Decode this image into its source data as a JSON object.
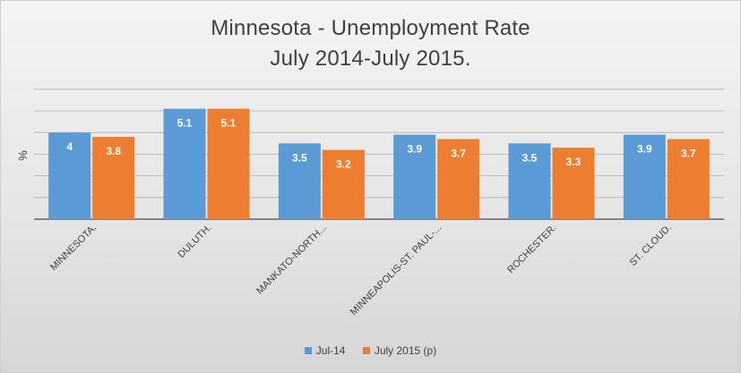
{
  "chart_data": {
    "type": "bar",
    "title": "Minnesota - Unemployment Rate",
    "subtitle": "July 2014-July 2015.",
    "ylabel": "%",
    "ylim": [
      0,
      6
    ],
    "grid": true,
    "legend": "bottom",
    "categories": [
      "MINNESOTA.",
      "DULUTH.",
      "MANKATO-NORTH...",
      "MINNEAPOLIS-ST. PAUL-...",
      "ROCHESTER.",
      "ST. CLOUD."
    ],
    "series": [
      {
        "name": "Jul-14",
        "color": "#5b9bd5",
        "values": [
          4,
          5.1,
          3.5,
          3.9,
          3.5,
          3.9
        ],
        "labels": [
          "4",
          "5.1",
          "3.5",
          "3.9",
          "3.5",
          "3.9"
        ]
      },
      {
        "name": "July 2015 (p)",
        "color": "#ed7d31",
        "values": [
          3.8,
          5.1,
          3.2,
          3.7,
          3.3,
          3.7
        ],
        "labels": [
          "3.8",
          "5.1",
          "3.2",
          "3.7",
          "3.3",
          "3.7"
        ]
      }
    ]
  }
}
